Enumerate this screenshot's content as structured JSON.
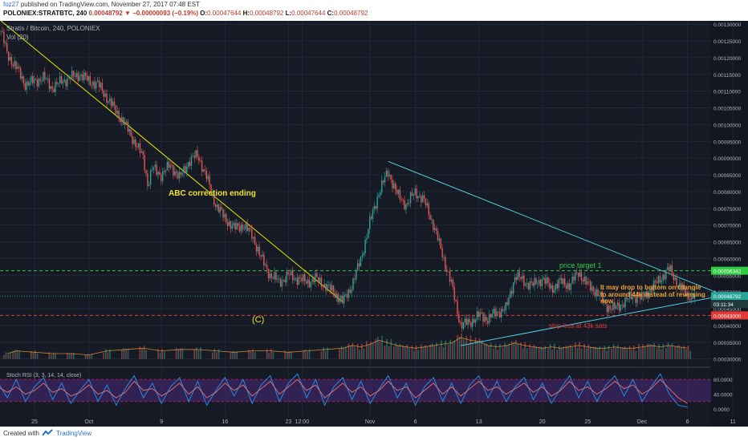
{
  "header": {
    "author": "foz27",
    "published": "published on TradingView.com, November 27, 2017 07:48 EST",
    "symbol_line": "POLONIEX:STRATBTC, 240",
    "price": "0.00048792",
    "change": "−0.00000093 (−0.19%)",
    "ohlc": {
      "O": "0.00047644",
      "H": "0.00048792",
      "L": "0.00047644",
      "C": "0.00048792"
    }
  },
  "chart_data": {
    "type": "candlestick",
    "title": "Stratis / Bitcoin, 240, POLONIEX",
    "volume_label": "Vol (20)",
    "x_ticks": [
      {
        "label": "25",
        "time": 0
      },
      {
        "label": "Oct",
        "time": 6
      },
      {
        "label": "9",
        "time": 14
      },
      {
        "label": "16",
        "time": 21
      },
      {
        "label": "23",
        "time": 28
      },
      {
        "label": "12:00",
        "time": 29.5
      },
      {
        "label": "Nov",
        "time": 37
      },
      {
        "label": "6",
        "time": 42
      },
      {
        "label": "13",
        "time": 49
      },
      {
        "label": "20",
        "time": 56
      },
      {
        "label": "25",
        "time": 61
      },
      {
        "label": "Dec",
        "time": 67
      },
      {
        "label": "6",
        "time": 72
      },
      {
        "label": "11",
        "time": 77
      }
    ],
    "y_axis": {
      "min": 0.00028,
      "max": 0.00131,
      "ticks": [
        "0.00130000",
        "0.00125000",
        "0.00120000",
        "0.00115000",
        "0.00110000",
        "0.00105000",
        "0.00100000",
        "0.00095000",
        "0.00090000",
        "0.00085000",
        "0.00080000",
        "0.00075000",
        "0.00070000",
        "0.00065000",
        "0.00060000",
        "0.00055000",
        "0.00050000",
        "0.00045000",
        "0.00040000",
        "0.00035000",
        "0.00030000"
      ]
    },
    "price_path": [
      [
        -3.7,
        0.00128
      ],
      [
        -3,
        0.00121
      ],
      [
        -2,
        0.00117
      ],
      [
        -1,
        0.00112
      ],
      [
        0,
        0.00113
      ],
      [
        1,
        0.00114
      ],
      [
        2,
        0.00111
      ],
      [
        3,
        0.00113
      ],
      [
        4,
        0.00114
      ],
      [
        5,
        0.00115
      ],
      [
        6,
        0.00113
      ],
      [
        7,
        0.00112
      ],
      [
        8,
        0.00108
      ],
      [
        9,
        0.00104
      ],
      [
        10,
        0.001
      ],
      [
        11,
        0.00095
      ],
      [
        12,
        0.0009
      ],
      [
        12.5,
        0.00082
      ],
      [
        13,
        0.00087
      ],
      [
        14,
        0.00085
      ],
      [
        15,
        0.00088
      ],
      [
        16,
        0.00084
      ],
      [
        17,
        0.00089
      ],
      [
        18,
        0.00091
      ],
      [
        19,
        0.00084
      ],
      [
        20,
        0.00076
      ],
      [
        21,
        0.00072
      ],
      [
        22,
        0.00069
      ],
      [
        23,
        0.0007
      ],
      [
        24,
        0.00067
      ],
      [
        25,
        0.0006
      ],
      [
        26,
        0.00055
      ],
      [
        27,
        0.00053
      ],
      [
        28,
        0.00055
      ],
      [
        29,
        0.00054
      ],
      [
        30,
        0.00053
      ],
      [
        31,
        0.00054
      ],
      [
        32,
        0.00052
      ],
      [
        33,
        0.0005
      ],
      [
        34,
        0.00047
      ],
      [
        35,
        0.00052
      ],
      [
        36,
        0.0006
      ],
      [
        37,
        0.00071
      ],
      [
        38,
        0.0008
      ],
      [
        39,
        0.00086
      ],
      [
        40,
        0.00079
      ],
      [
        41,
        0.00076
      ],
      [
        42,
        0.0008
      ],
      [
        43,
        0.00077
      ],
      [
        44,
        0.0007
      ],
      [
        45,
        0.00061
      ],
      [
        46,
        0.00052
      ],
      [
        47,
        0.0004
      ],
      [
        48,
        0.00041
      ],
      [
        49,
        0.00043
      ],
      [
        50,
        0.00042
      ],
      [
        51,
        0.00044
      ],
      [
        52,
        0.00045
      ],
      [
        53,
        0.00055
      ],
      [
        54,
        0.00053
      ],
      [
        55,
        0.00052
      ],
      [
        56,
        0.00054
      ],
      [
        57,
        0.00051
      ],
      [
        58,
        0.00053
      ],
      [
        59,
        0.00052
      ],
      [
        60,
        0.00056
      ],
      [
        61,
        0.00052
      ],
      [
        62,
        0.0005
      ],
      [
        63,
        0.00046
      ],
      [
        64,
        0.00045
      ],
      [
        65,
        0.00047
      ],
      [
        66,
        0.00049
      ],
      [
        67,
        0.00048
      ],
      [
        68,
        0.00051
      ],
      [
        69,
        0.00054
      ],
      [
        70,
        0.00057
      ],
      [
        71,
        0.00052
      ],
      [
        72,
        0.00049
      ],
      [
        72.8,
        0.000488
      ]
    ],
    "volume_baseline": 0.0003,
    "volume_max": 0.0004,
    "volume": [
      [
        -3,
        0.2
      ],
      [
        -2,
        0.3
      ],
      [
        0,
        0.25
      ],
      [
        2,
        0.2
      ],
      [
        4,
        0.2
      ],
      [
        6,
        0.15
      ],
      [
        8,
        0.3
      ],
      [
        10,
        0.35
      ],
      [
        12,
        0.4
      ],
      [
        14,
        0.3
      ],
      [
        16,
        0.35
      ],
      [
        18,
        0.35
      ],
      [
        20,
        0.3
      ],
      [
        22,
        0.25
      ],
      [
        24,
        0.3
      ],
      [
        26,
        0.3
      ],
      [
        28,
        0.25
      ],
      [
        30,
        0.3
      ],
      [
        32,
        0.35
      ],
      [
        34,
        0.4
      ],
      [
        35,
        0.5
      ],
      [
        36,
        0.45
      ],
      [
        37,
        0.55
      ],
      [
        38,
        0.7
      ],
      [
        39,
        0.6
      ],
      [
        40,
        0.5
      ],
      [
        41,
        0.45
      ],
      [
        42,
        0.4
      ],
      [
        43,
        0.45
      ],
      [
        44,
        0.5
      ],
      [
        45,
        0.55
      ],
      [
        46,
        0.6
      ],
      [
        47,
        0.8
      ],
      [
        48,
        0.7
      ],
      [
        49,
        0.65
      ],
      [
        50,
        0.5
      ],
      [
        51,
        0.45
      ],
      [
        52,
        0.5
      ],
      [
        53,
        0.6
      ],
      [
        54,
        0.5
      ],
      [
        55,
        0.45
      ],
      [
        56,
        0.4
      ],
      [
        57,
        0.45
      ],
      [
        58,
        0.4
      ],
      [
        59,
        0.45
      ],
      [
        60,
        0.5
      ],
      [
        61,
        0.45
      ],
      [
        62,
        0.4
      ],
      [
        63,
        0.4
      ],
      [
        64,
        0.45
      ],
      [
        65,
        0.4
      ],
      [
        66,
        0.4
      ],
      [
        67,
        0.45
      ],
      [
        68,
        0.5
      ],
      [
        69,
        0.45
      ],
      [
        70,
        0.5
      ],
      [
        71,
        0.45
      ],
      [
        72,
        0.4
      ]
    ],
    "stoch": {
      "label": "Stoch RSI (3, 3, 14, 14, close)",
      "ticks": [
        "80.0000",
        "40.0000",
        "0.0000"
      ],
      "band_low": 20,
      "band_high": 80,
      "k": [
        [
          -4,
          70
        ],
        [
          -3,
          30
        ],
        [
          -2,
          80
        ],
        [
          -1,
          20
        ],
        [
          0,
          60
        ],
        [
          1,
          85
        ],
        [
          2,
          25
        ],
        [
          3,
          70
        ],
        [
          4,
          15
        ],
        [
          5,
          50
        ],
        [
          6,
          80
        ],
        [
          7,
          20
        ],
        [
          8,
          65
        ],
        [
          9,
          10
        ],
        [
          10,
          55
        ],
        [
          11,
          90
        ],
        [
          12,
          30
        ],
        [
          13,
          70
        ],
        [
          14,
          15
        ],
        [
          15,
          60
        ],
        [
          16,
          85
        ],
        [
          17,
          20
        ],
        [
          18,
          75
        ],
        [
          19,
          10
        ],
        [
          20,
          50
        ],
        [
          21,
          85
        ],
        [
          22,
          35
        ],
        [
          23,
          80
        ],
        [
          24,
          15
        ],
        [
          25,
          65
        ],
        [
          26,
          90
        ],
        [
          27,
          20
        ],
        [
          28,
          70
        ],
        [
          29,
          95
        ],
        [
          30,
          30
        ],
        [
          31,
          80
        ],
        [
          32,
          10
        ],
        [
          33,
          60
        ],
        [
          34,
          85
        ],
        [
          35,
          25
        ],
        [
          36,
          75
        ],
        [
          37,
          15
        ],
        [
          38,
          55
        ],
        [
          39,
          90
        ],
        [
          40,
          30
        ],
        [
          41,
          70
        ],
        [
          42,
          10
        ],
        [
          43,
          60
        ],
        [
          44,
          85
        ],
        [
          45,
          20
        ],
        [
          46,
          70
        ],
        [
          47,
          15
        ],
        [
          48,
          65
        ],
        [
          49,
          90
        ],
        [
          50,
          30
        ],
        [
          51,
          75
        ],
        [
          52,
          20
        ],
        [
          53,
          60
        ],
        [
          54,
          85
        ],
        [
          55,
          25
        ],
        [
          56,
          70
        ],
        [
          57,
          15
        ],
        [
          58,
          55
        ],
        [
          59,
          90
        ],
        [
          60,
          30
        ],
        [
          61,
          75
        ],
        [
          62,
          20
        ],
        [
          63,
          65
        ],
        [
          64,
          90
        ],
        [
          65,
          35
        ],
        [
          66,
          80
        ],
        [
          67,
          20
        ],
        [
          68,
          60
        ],
        [
          69,
          95
        ],
        [
          70,
          40
        ],
        [
          71,
          10
        ],
        [
          72,
          5
        ]
      ],
      "d": [
        [
          -4,
          60
        ],
        [
          -3,
          45
        ],
        [
          -2,
          60
        ],
        [
          -1,
          40
        ],
        [
          0,
          50
        ],
        [
          1,
          70
        ],
        [
          2,
          45
        ],
        [
          3,
          55
        ],
        [
          4,
          35
        ],
        [
          5,
          45
        ],
        [
          6,
          65
        ],
        [
          7,
          40
        ],
        [
          8,
          50
        ],
        [
          9,
          30
        ],
        [
          10,
          45
        ],
        [
          11,
          75
        ],
        [
          12,
          50
        ],
        [
          13,
          55
        ],
        [
          14,
          35
        ],
        [
          15,
          50
        ],
        [
          16,
          70
        ],
        [
          17,
          40
        ],
        [
          18,
          60
        ],
        [
          19,
          30
        ],
        [
          20,
          45
        ],
        [
          21,
          70
        ],
        [
          22,
          50
        ],
        [
          23,
          65
        ],
        [
          24,
          35
        ],
        [
          25,
          55
        ],
        [
          26,
          75
        ],
        [
          27,
          40
        ],
        [
          28,
          60
        ],
        [
          29,
          80
        ],
        [
          30,
          50
        ],
        [
          31,
          65
        ],
        [
          32,
          30
        ],
        [
          33,
          50
        ],
        [
          34,
          70
        ],
        [
          35,
          45
        ],
        [
          36,
          60
        ],
        [
          37,
          35
        ],
        [
          38,
          50
        ],
        [
          39,
          75
        ],
        [
          40,
          50
        ],
        [
          41,
          60
        ],
        [
          42,
          30
        ],
        [
          43,
          50
        ],
        [
          44,
          70
        ],
        [
          45,
          40
        ],
        [
          46,
          60
        ],
        [
          47,
          35
        ],
        [
          48,
          55
        ],
        [
          49,
          75
        ],
        [
          50,
          50
        ],
        [
          51,
          60
        ],
        [
          52,
          40
        ],
        [
          53,
          55
        ],
        [
          54,
          70
        ],
        [
          55,
          45
        ],
        [
          56,
          60
        ],
        [
          57,
          35
        ],
        [
          58,
          50
        ],
        [
          59,
          75
        ],
        [
          60,
          50
        ],
        [
          61,
          60
        ],
        [
          62,
          40
        ],
        [
          63,
          55
        ],
        [
          64,
          75
        ],
        [
          65,
          55
        ],
        [
          66,
          65
        ],
        [
          67,
          40
        ],
        [
          68,
          55
        ],
        [
          69,
          80
        ],
        [
          70,
          55
        ],
        [
          71,
          30
        ],
        [
          72,
          15
        ]
      ]
    },
    "annotations": {
      "abc_text": "ABC correction ending",
      "c_text": "(C)",
      "target_text": "price target 1",
      "drop_text_1": "It may drop to bottom on triangle",
      "drop_text_2": "to around 44k instead of reversing",
      "drop_text_3": "now",
      "stop_text": "stop loss at 43k sats"
    },
    "levels": {
      "target": {
        "value": 0.00056342,
        "label": "0.00056342",
        "color": "#2ecc40"
      },
      "current": {
        "value": 0.00048792,
        "label": "0.00048792",
        "color": "#26a69a"
      },
      "countdown": {
        "value": 0.000464,
        "label": "03:11:34"
      },
      "stop": {
        "value": 0.00043,
        "label": "0.00043000",
        "color": "#e53935"
      }
    },
    "lines": {
      "downtrend": {
        "from": [
          -3.7,
          0.00131
        ],
        "to": [
          34,
          0.00047
        ],
        "color": "#e6e600"
      },
      "tri_upper": {
        "from": [
          39,
          0.00089
        ],
        "to": [
          76,
          0.00049
        ],
        "color": "#4dd0e1"
      },
      "tri_lower": {
        "from": [
          47,
          0.00034
        ],
        "to": [
          76,
          0.00049
        ],
        "color": "#4dd0e1"
      }
    },
    "colors": {
      "bg": "#161a25",
      "grid": "#232736",
      "up": "#26a69a",
      "down": "#ef5350",
      "stoch_k": "#2196f3",
      "stoch_d": "#e57373",
      "stoch_band": "#4a2a7a"
    }
  },
  "footer": {
    "created": "Created with",
    "brand": "TradingView"
  }
}
